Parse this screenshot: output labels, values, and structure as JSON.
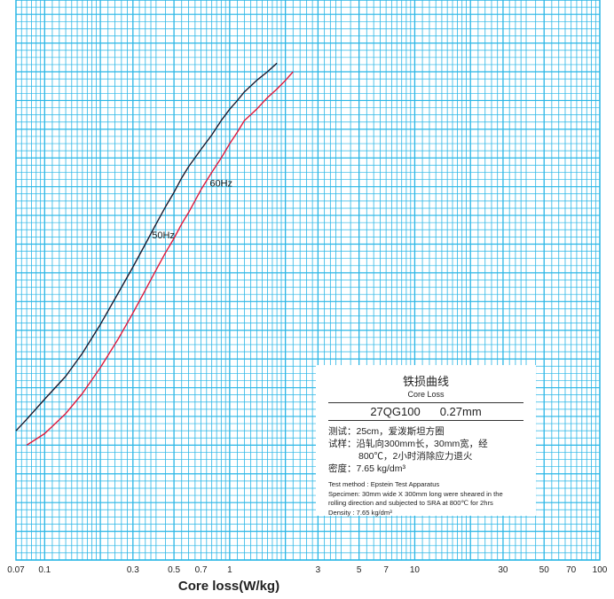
{
  "chart_data": {
    "type": "line",
    "title": "",
    "xlabel": "Core loss(W/kg)",
    "ylabel": "",
    "xscale": "log",
    "xlim": [
      0.07,
      100
    ],
    "ylim": [
      0,
      1.95
    ],
    "grid": true,
    "x_tick_labels": [
      "0.07",
      "0.1",
      "0.3",
      "0.5",
      "0.7",
      "1",
      "3",
      "5",
      "7",
      "10",
      "30",
      "50",
      "70",
      "100"
    ],
    "x_tick_values": [
      0.07,
      0.1,
      0.3,
      0.5,
      0.7,
      1,
      3,
      5,
      7,
      10,
      30,
      50,
      70,
      100
    ],
    "series": [
      {
        "name": "50Hz",
        "color": "#1a1a2e",
        "x": [
          0.07,
          0.08,
          0.1,
          0.13,
          0.16,
          0.2,
          0.25,
          0.3,
          0.35,
          0.4,
          0.45,
          0.5,
          0.55,
          0.6,
          0.7,
          0.8,
          0.9,
          1.0,
          1.1,
          1.2,
          1.4,
          1.6,
          1.8
        ],
        "y": [
          0.45,
          0.49,
          0.56,
          0.64,
          0.72,
          0.82,
          0.93,
          1.02,
          1.1,
          1.17,
          1.23,
          1.28,
          1.33,
          1.37,
          1.43,
          1.48,
          1.53,
          1.57,
          1.6,
          1.63,
          1.67,
          1.7,
          1.73
        ]
      },
      {
        "name": "60Hz",
        "color": "#e0193c",
        "x": [
          0.08,
          0.1,
          0.13,
          0.16,
          0.2,
          0.25,
          0.3,
          0.35,
          0.4,
          0.45,
          0.5,
          0.55,
          0.6,
          0.7,
          0.8,
          0.9,
          1.0,
          1.1,
          1.2,
          1.4,
          1.6,
          1.8,
          2.0,
          2.2
        ],
        "y": [
          0.4,
          0.44,
          0.51,
          0.58,
          0.67,
          0.77,
          0.86,
          0.94,
          1.01,
          1.07,
          1.12,
          1.17,
          1.21,
          1.29,
          1.35,
          1.4,
          1.45,
          1.49,
          1.53,
          1.57,
          1.61,
          1.64,
          1.67,
          1.7
        ]
      }
    ],
    "annotations": [
      {
        "text": "50Hz",
        "x": 0.38,
        "y": 1.12
      },
      {
        "text": "60Hz",
        "x": 0.78,
        "y": 1.3
      }
    ]
  },
  "legend": {
    "title_cn": "铁损曲线",
    "title_en": "Core Loss",
    "grade": "27QG100",
    "thickness": "0.27mm",
    "cn_test_label": "测试：",
    "cn_test_value": "25cm，爱泼斯坦方圈",
    "cn_sample_label": "试样：",
    "cn_sample_line1": "沿轧向300mm长，30mm宽，经",
    "cn_sample_line2": "800℃，2小时消除应力退火",
    "cn_density_label": "密度：",
    "cn_density_value": "7.65 kg/dm³",
    "en_method": "Test method : Epstein Test Apparatus",
    "en_specimen_1": "Specimen: 30mm wide X 300mm long were sheared in the",
    "en_specimen_2": "rolling direction and subjected to SRA at 800℃ for 2hrs",
    "en_density": "Density : 7.65 kg/dm³"
  },
  "colors": {
    "grid": "#29b6e6",
    "border": "#29b6e6",
    "series_50hz": "#1a1a2e",
    "series_60hz": "#e0193c"
  }
}
